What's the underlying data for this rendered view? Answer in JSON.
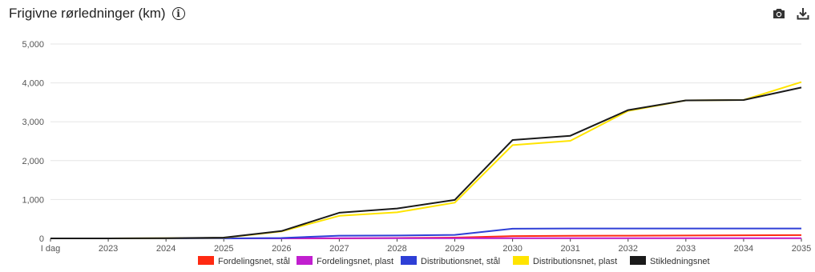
{
  "header": {
    "title": "Frigivne rørledninger (km)",
    "info_icon": "info-icon"
  },
  "toolbar": {
    "camera_icon": "camera-icon",
    "download_icon": "download-icon"
  },
  "chart_data": {
    "type": "line",
    "title": "Frigivne rørledninger (km)",
    "xlabel": "",
    "ylabel": "",
    "categories": [
      "I dag",
      "2023",
      "2024",
      "2025",
      "2026",
      "2027",
      "2028",
      "2029",
      "2030",
      "2031",
      "2032",
      "2033",
      "2034",
      "2035"
    ],
    "ylim": [
      0,
      5000
    ],
    "yticks": [
      0,
      1000,
      2000,
      3000,
      4000,
      5000
    ],
    "ytick_labels": [
      "0",
      "1,000",
      "2,000",
      "3,000",
      "4,000",
      "5,000"
    ],
    "grid": true,
    "legend_position": "bottom",
    "series": [
      {
        "name": "Fordelingsnet, stål",
        "color": "#ff2a12",
        "values": [
          0,
          0,
          0,
          0,
          0,
          0,
          10,
          20,
          60,
          65,
          70,
          75,
          80,
          85
        ]
      },
      {
        "name": "Fordelingsnet, plast",
        "color": "#c11fcf",
        "values": [
          0,
          0,
          0,
          0,
          0,
          5,
          5,
          5,
          5,
          5,
          5,
          5,
          5,
          5
        ]
      },
      {
        "name": "Distributionsnet, stål",
        "color": "#2e3fd6",
        "values": [
          0,
          0,
          0,
          0,
          10,
          70,
          75,
          90,
          250,
          255,
          255,
          255,
          255,
          255
        ]
      },
      {
        "name": "Distributionsnet, plast",
        "color": "#ffe400",
        "values": [
          0,
          0,
          5,
          15,
          180,
          580,
          670,
          920,
          2400,
          2510,
          3280,
          3550,
          3560,
          4020
        ]
      },
      {
        "name": "Stikledningsnet",
        "color": "#1a1a1a",
        "values": [
          0,
          0,
          5,
          20,
          190,
          660,
          770,
          990,
          2530,
          2640,
          3300,
          3550,
          3560,
          3880
        ]
      }
    ]
  }
}
